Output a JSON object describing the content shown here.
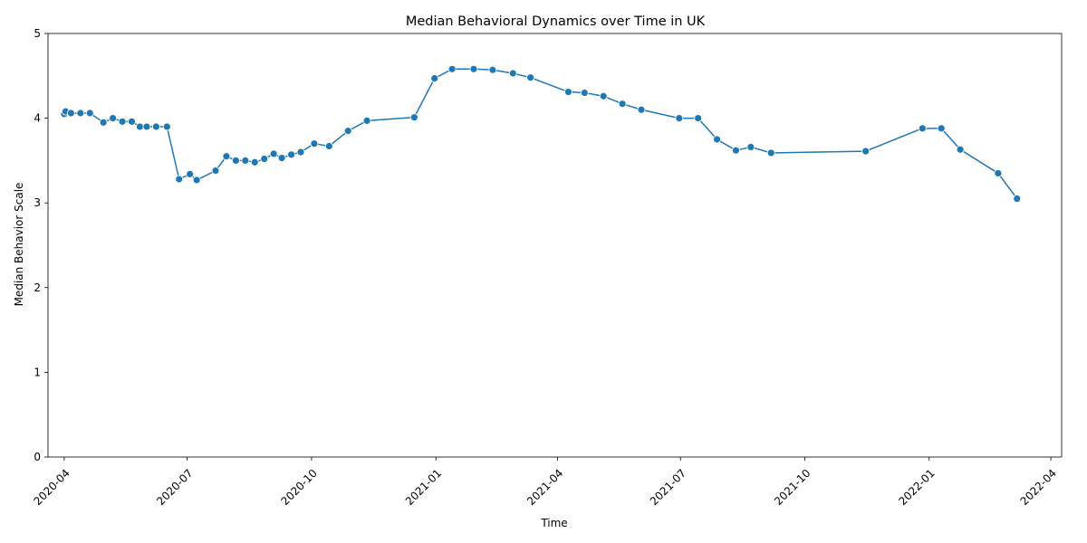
{
  "chart_data": {
    "type": "line",
    "title": "Median Behavioral Dynamics over Time in UK",
    "xlabel": "Time",
    "ylabel": "Median Behavior Scale",
    "x_ticks": [
      "2020-04",
      "2020-07",
      "2020-10",
      "2021-01",
      "2021-04",
      "2021-07",
      "2021-10",
      "2022-01",
      "2022-04"
    ],
    "y_ticks": [
      "0",
      "1",
      "2",
      "3",
      "4",
      "5"
    ],
    "xlim": [
      "2020-03-20",
      "2022-04-09"
    ],
    "ylim": [
      0,
      5
    ],
    "grid": false,
    "legend": "none",
    "series": [
      {
        "color": "#1f77b4",
        "marker": "circle",
        "x": [
          "2020-04-01",
          "2020-04-02",
          "2020-04-06",
          "2020-04-13",
          "2020-04-20",
          "2020-04-30",
          "2020-05-07",
          "2020-05-14",
          "2020-05-21",
          "2020-05-27",
          "2020-06-01",
          "2020-06-08",
          "2020-06-16",
          "2020-06-25",
          "2020-07-03",
          "2020-07-08",
          "2020-07-22",
          "2020-07-30",
          "2020-08-06",
          "2020-08-13",
          "2020-08-20",
          "2020-08-27",
          "2020-09-03",
          "2020-09-09",
          "2020-09-16",
          "2020-09-23",
          "2020-10-03",
          "2020-10-14",
          "2020-10-28",
          "2020-11-11",
          "2020-12-16",
          "2020-12-31",
          "2021-01-13",
          "2021-01-29",
          "2021-02-12",
          "2021-02-27",
          "2021-03-12",
          "2021-04-09",
          "2021-04-21",
          "2021-05-05",
          "2021-05-19",
          "2021-06-02",
          "2021-06-30",
          "2021-07-14",
          "2021-07-28",
          "2021-08-11",
          "2021-08-22",
          "2021-09-06",
          "2021-11-15",
          "2021-12-27",
          "2022-01-10",
          "2022-01-24",
          "2022-02-21",
          "2022-03-07"
        ],
        "y": [
          4.05,
          4.08,
          4.06,
          4.06,
          4.06,
          3.95,
          4.0,
          3.96,
          3.96,
          3.9,
          3.9,
          3.9,
          3.9,
          3.28,
          3.34,
          3.27,
          3.38,
          3.55,
          3.5,
          3.5,
          3.48,
          3.52,
          3.58,
          3.53,
          3.57,
          3.6,
          3.7,
          3.67,
          3.85,
          3.97,
          4.01,
          4.47,
          4.58,
          4.58,
          4.57,
          4.53,
          4.48,
          4.31,
          4.3,
          4.26,
          4.17,
          4.1,
          4.0,
          4.0,
          3.75,
          3.62,
          3.66,
          3.59,
          3.61,
          3.88,
          3.88,
          3.63,
          3.35,
          3.05
        ]
      }
    ]
  }
}
